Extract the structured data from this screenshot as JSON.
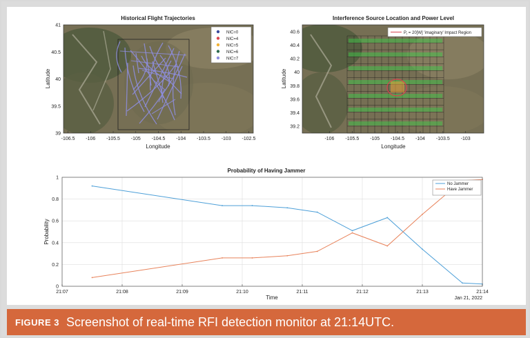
{
  "caption": {
    "label": "FIGURE 3",
    "text": "Screenshot of real-time RFI detection monitor at 21:14UTC."
  },
  "colors": {
    "no_jammer": "#4c9fd8",
    "have_jammer": "#e8825a",
    "caption_bg": "#d5683c",
    "terrain": "#6b6a4f"
  },
  "chart_data": [
    {
      "type": "scatter",
      "title": "Historical Flight Trajectories",
      "xlabel": "Longitude",
      "ylabel": "Latitude",
      "xlim": [
        -106.6,
        -102.4
      ],
      "ylim": [
        39,
        41
      ],
      "xticks": [
        "-106.5",
        "-106",
        "-105.5",
        "-105",
        "-104.5",
        "-104",
        "-103.5",
        "-103",
        "-102.5"
      ],
      "yticks": [
        "39",
        "39.5",
        "40",
        "40.5",
        "41"
      ],
      "legend": [
        {
          "name": "NIC=0",
          "color": "#3b4a9e"
        },
        {
          "name": "NIC=4",
          "color": "#d9434f"
        },
        {
          "name": "NIC=5",
          "color": "#f2b134"
        },
        {
          "name": "NIC=6",
          "color": "#2d6a4f"
        },
        {
          "name": "NIC=7",
          "color": "#8e8ee0"
        }
      ],
      "legend_position": "top-right",
      "background": "satellite-map",
      "icon": "map-background"
    },
    {
      "type": "heatmap",
      "title": "Interference Source Location and Power Level",
      "xlabel": "Longitude",
      "ylabel": "Latitude",
      "xlim": [
        -106.6,
        -102.6
      ],
      "ylim": [
        39.1,
        40.7
      ],
      "xticks": [
        "-106",
        "-105.5",
        "-105",
        "-104.5",
        "-104",
        "-103.5",
        "-103"
      ],
      "yticks": [
        "39.2",
        "39.4",
        "39.6",
        "39.8",
        "40",
        "40.2",
        "40.4",
        "40.6"
      ],
      "legend": [
        {
          "name_prefix": "P",
          "name_sub": "t",
          "name_suffix": " = 20[W] 'imaginary' Impact Region",
          "color": "#d9434f"
        }
      ],
      "legend_position": "top-right",
      "background": "satellite-map",
      "icon": "map-background"
    },
    {
      "type": "line",
      "title": "Probability of Having Jammer",
      "xlabel": "Time",
      "ylabel": "Probability",
      "date_label": "Jan 21, 2022",
      "xlim": [
        "21:07",
        "21:14"
      ],
      "xticks": [
        "21:07",
        "21:08",
        "21:09",
        "21:10",
        "21:11",
        "21:12",
        "21:13",
        "21:14"
      ],
      "ylim": [
        0,
        1
      ],
      "yticks": [
        "0",
        "0.2",
        "0.4",
        "0.6",
        "0.8",
        "1"
      ],
      "grid": true,
      "legend_position": "top-right",
      "x": [
        "21:07:30",
        "21:09:40",
        "21:10:10",
        "21:10:45",
        "21:11:15",
        "21:11:50",
        "21:12:25",
        "21:13:00",
        "21:13:40",
        "21:14:00"
      ],
      "series": [
        {
          "name": "No Jammer",
          "color": "#4c9fd8",
          "values": [
            0.92,
            0.74,
            0.74,
            0.72,
            0.68,
            0.51,
            0.63,
            0.34,
            0.03,
            0.02
          ]
        },
        {
          "name": "Have Jammer",
          "color": "#e8825a",
          "values": [
            0.08,
            0.26,
            0.26,
            0.28,
            0.32,
            0.49,
            0.37,
            0.66,
            0.97,
            0.98
          ]
        }
      ]
    }
  ]
}
